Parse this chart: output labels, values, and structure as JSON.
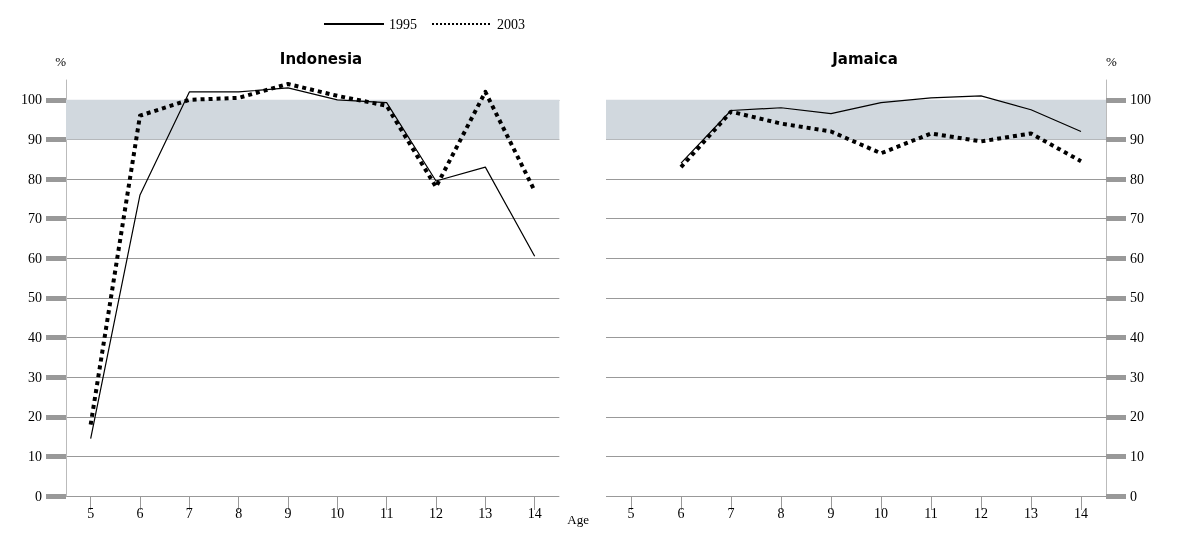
{
  "chart_data": [
    {
      "type": "line",
      "title": "Indonesia",
      "ylabel": "%",
      "xlabel": "Age",
      "categories": [
        "5",
        "6",
        "7",
        "8",
        "9",
        "10",
        "11",
        "12",
        "13",
        "14"
      ],
      "series": [
        {
          "name": "1995",
          "color": "#000000",
          "line_style": "solid",
          "values": [
            14.5,
            76,
            102,
            102,
            103,
            100,
            99.3,
            79.5,
            83,
            60.5
          ]
        },
        {
          "name": "2003",
          "color": "#000000",
          "line_style": "dotted",
          "values": [
            18,
            96,
            100,
            100.5,
            104,
            101,
            98.5,
            78,
            102,
            77
          ]
        }
      ],
      "ylim": [
        0,
        105
      ],
      "yticks": [
        0,
        10,
        20,
        30,
        40,
        50,
        60,
        70,
        80,
        90,
        100
      ],
      "grid": "y",
      "legend": "top",
      "marker": "none",
      "bands": [
        {
          "axis": "y",
          "from": 90,
          "to": 100,
          "color": "#d1d8de"
        }
      ]
    },
    {
      "type": "line",
      "title": "Jamaica",
      "ylabel": "%",
      "categories": [
        "5",
        "6",
        "7",
        "8",
        "9",
        "10",
        "11",
        "12",
        "13",
        "14"
      ],
      "series": [
        {
          "color": "#000000",
          "line_style": "solid",
          "values": [
            null,
            84,
            97.3,
            98,
            96.5,
            99.3,
            100.5,
            101,
            97.5,
            92
          ]
        },
        {
          "color": "#000000",
          "line_style": "dotted",
          "values": [
            null,
            83,
            97,
            94,
            92,
            86.5,
            91.5,
            89.5,
            91.5,
            84.5
          ]
        }
      ],
      "ylim": [
        0,
        105
      ],
      "yticks": [
        0,
        10,
        20,
        30,
        40,
        50,
        60,
        70,
        80,
        90,
        100
      ],
      "grid": "y",
      "marker": "none",
      "bands": [
        {
          "axis": "y",
          "from": 90,
          "to": 100,
          "color": "#d1d8de"
        }
      ]
    }
  ]
}
